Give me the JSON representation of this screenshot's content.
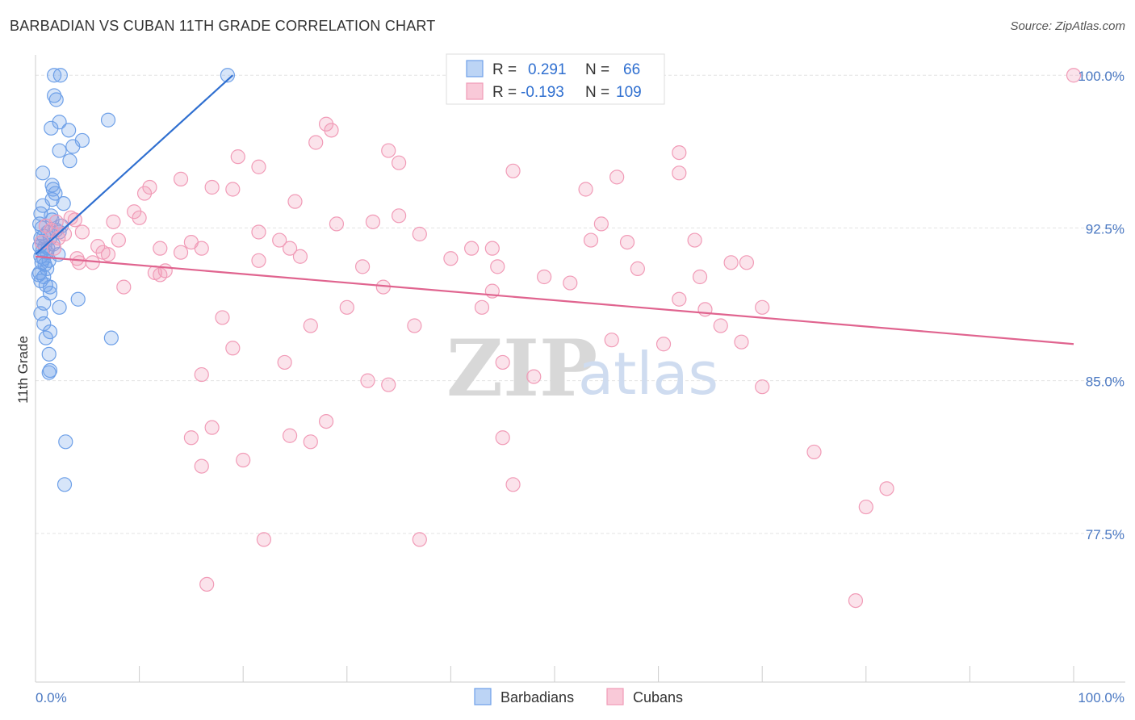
{
  "header": {
    "title": "BARBADIAN VS CUBAN 11TH GRADE CORRELATION CHART",
    "source": "Source: ZipAtlas.com"
  },
  "watermark": {
    "part1": "ZIP",
    "part2": "atlas"
  },
  "legend": {
    "rows": [
      {
        "r_label": "R =",
        "r_value": "0.291",
        "n_label": "N =",
        "n_value": "66",
        "color": "#6ea0e8"
      },
      {
        "r_label": "R =",
        "r_value": "-0.193",
        "n_label": "N =",
        "n_value": "109",
        "color": "#f19bb7"
      }
    ]
  },
  "bottom_legend": [
    {
      "label": "Barbadians",
      "color": "#6ea0e8"
    },
    {
      "label": "Cubans",
      "color": "#f19bb7"
    }
  ],
  "chart_data": {
    "type": "scatter",
    "title": "BARBADIAN VS CUBAN 11TH GRADE CORRELATION CHART",
    "xlabel": "",
    "ylabel": "11th Grade",
    "xlim": [
      0,
      100
    ],
    "ylim": [
      70.2,
      101.0
    ],
    "x_tick_labels": [
      "0.0%",
      "100.0%"
    ],
    "y_ticks": [
      77.5,
      85.0,
      92.5,
      100.0
    ],
    "y_tick_labels": [
      "77.5%",
      "85.0%",
      "92.5%",
      "100.0%"
    ],
    "grid": true,
    "series": [
      {
        "name": "Barbadians",
        "color": "#6ea0e8",
        "trend": {
          "x": [
            0.0,
            19.0
          ],
          "y": [
            91.2,
            100.0
          ]
        },
        "points": [
          [
            1.8,
            100.0
          ],
          [
            2.4,
            100.0
          ],
          [
            18.5,
            100.0
          ],
          [
            1.8,
            99.0
          ],
          [
            2.0,
            98.8
          ],
          [
            2.3,
            97.7
          ],
          [
            7.0,
            97.8
          ],
          [
            1.5,
            97.4
          ],
          [
            3.2,
            97.3
          ],
          [
            4.5,
            96.8
          ],
          [
            3.6,
            96.5
          ],
          [
            2.3,
            96.3
          ],
          [
            3.3,
            95.8
          ],
          [
            0.7,
            95.2
          ],
          [
            1.6,
            94.6
          ],
          [
            1.7,
            94.4
          ],
          [
            1.9,
            94.2
          ],
          [
            1.6,
            93.9
          ],
          [
            2.7,
            93.7
          ],
          [
            0.7,
            93.6
          ],
          [
            0.5,
            93.2
          ],
          [
            1.5,
            93.1
          ],
          [
            1.6,
            92.9
          ],
          [
            0.4,
            92.7
          ],
          [
            2.0,
            92.4
          ],
          [
            2.3,
            92.3
          ],
          [
            1.2,
            92.3
          ],
          [
            0.8,
            92.1
          ],
          [
            1.4,
            92.0
          ],
          [
            0.6,
            91.8
          ],
          [
            0.9,
            91.6
          ],
          [
            0.7,
            91.4
          ],
          [
            1.1,
            91.3
          ],
          [
            2.2,
            91.2
          ],
          [
            0.5,
            91.1
          ],
          [
            0.8,
            91.0
          ],
          [
            1.3,
            90.9
          ],
          [
            0.6,
            90.8
          ],
          [
            1.1,
            90.5
          ],
          [
            0.4,
            90.3
          ],
          [
            0.8,
            90.1
          ],
          [
            0.5,
            89.9
          ],
          [
            1.4,
            89.6
          ],
          [
            1.4,
            89.3
          ],
          [
            4.1,
            89.0
          ],
          [
            0.8,
            88.8
          ],
          [
            2.3,
            88.6
          ],
          [
            0.5,
            88.3
          ],
          [
            0.8,
            87.8
          ],
          [
            1.4,
            87.4
          ],
          [
            1.0,
            87.1
          ],
          [
            7.3,
            87.1
          ],
          [
            1.3,
            86.3
          ],
          [
            1.4,
            85.5
          ],
          [
            1.3,
            85.4
          ],
          [
            2.9,
            82.0
          ],
          [
            2.8,
            79.9
          ],
          [
            0.4,
            91.6
          ],
          [
            0.6,
            92.5
          ],
          [
            1.0,
            89.7
          ],
          [
            0.3,
            90.2
          ],
          [
            1.7,
            91.7
          ],
          [
            2.5,
            92.6
          ],
          [
            0.9,
            90.7
          ],
          [
            0.5,
            92.0
          ],
          [
            1.2,
            91.5
          ]
        ]
      },
      {
        "name": "Cubans",
        "color": "#f19bb7",
        "trend": {
          "x": [
            0.0,
            100.0
          ],
          "y": [
            91.1,
            86.8
          ]
        },
        "points": [
          [
            100.0,
            100.0
          ],
          [
            28.0,
            97.6
          ],
          [
            28.5,
            97.3
          ],
          [
            27.0,
            96.7
          ],
          [
            34.0,
            96.3
          ],
          [
            62.0,
            96.2
          ],
          [
            19.5,
            96.0
          ],
          [
            35.0,
            95.7
          ],
          [
            21.5,
            95.5
          ],
          [
            46.0,
            95.3
          ],
          [
            56.0,
            95.0
          ],
          [
            62.0,
            95.2
          ],
          [
            14.0,
            94.9
          ],
          [
            11.0,
            94.5
          ],
          [
            17.0,
            94.5
          ],
          [
            19.0,
            94.4
          ],
          [
            10.5,
            94.2
          ],
          [
            53.0,
            94.4
          ],
          [
            25.0,
            93.8
          ],
          [
            9.5,
            93.3
          ],
          [
            35.0,
            93.1
          ],
          [
            10.0,
            93.0
          ],
          [
            3.8,
            92.9
          ],
          [
            7.5,
            92.8
          ],
          [
            32.5,
            92.8
          ],
          [
            54.5,
            92.7
          ],
          [
            29.0,
            92.7
          ],
          [
            21.5,
            92.3
          ],
          [
            37.0,
            92.2
          ],
          [
            4.5,
            92.3
          ],
          [
            2.2,
            92.0
          ],
          [
            23.5,
            91.9
          ],
          [
            8.0,
            91.9
          ],
          [
            15.0,
            91.8
          ],
          [
            53.5,
            91.9
          ],
          [
            57.0,
            91.8
          ],
          [
            63.5,
            91.9
          ],
          [
            6.0,
            91.6
          ],
          [
            42.0,
            91.5
          ],
          [
            44.0,
            91.5
          ],
          [
            12.0,
            91.5
          ],
          [
            16.0,
            91.5
          ],
          [
            24.5,
            91.5
          ],
          [
            7.0,
            91.2
          ],
          [
            14.0,
            91.3
          ],
          [
            25.5,
            91.1
          ],
          [
            40.0,
            91.0
          ],
          [
            21.5,
            90.9
          ],
          [
            4.2,
            90.8
          ],
          [
            5.5,
            90.8
          ],
          [
            67.0,
            90.8
          ],
          [
            68.5,
            90.8
          ],
          [
            31.5,
            90.6
          ],
          [
            44.5,
            90.6
          ],
          [
            58.0,
            90.5
          ],
          [
            11.5,
            90.3
          ],
          [
            12.5,
            90.4
          ],
          [
            12.0,
            90.2
          ],
          [
            49.0,
            90.1
          ],
          [
            64.0,
            90.1
          ],
          [
            51.5,
            89.8
          ],
          [
            8.5,
            89.6
          ],
          [
            33.5,
            89.6
          ],
          [
            44.0,
            89.4
          ],
          [
            62.0,
            89.0
          ],
          [
            43.0,
            88.6
          ],
          [
            30.0,
            88.6
          ],
          [
            64.5,
            88.5
          ],
          [
            70.0,
            88.6
          ],
          [
            18.0,
            88.1
          ],
          [
            26.5,
            87.7
          ],
          [
            36.5,
            87.7
          ],
          [
            66.0,
            87.7
          ],
          [
            55.5,
            87.0
          ],
          [
            60.5,
            86.8
          ],
          [
            68.0,
            86.9
          ],
          [
            19.0,
            86.6
          ],
          [
            45.0,
            85.9
          ],
          [
            24.0,
            85.9
          ],
          [
            48.0,
            85.2
          ],
          [
            16.0,
            85.3
          ],
          [
            32.0,
            85.0
          ],
          [
            34.0,
            84.8
          ],
          [
            70.0,
            84.7
          ],
          [
            28.0,
            83.0
          ],
          [
            17.0,
            82.7
          ],
          [
            24.5,
            82.3
          ],
          [
            15.0,
            82.2
          ],
          [
            26.5,
            82.0
          ],
          [
            45.0,
            82.2
          ],
          [
            75.0,
            81.5
          ],
          [
            20.0,
            81.1
          ],
          [
            16.0,
            80.8
          ],
          [
            46.0,
            79.9
          ],
          [
            82.0,
            79.7
          ],
          [
            80.0,
            78.8
          ],
          [
            22.0,
            77.2
          ],
          [
            37.0,
            77.2
          ],
          [
            16.5,
            75.0
          ],
          [
            79.0,
            74.2
          ],
          [
            1.5,
            92.4
          ],
          [
            2.8,
            92.2
          ],
          [
            1.0,
            92.6
          ],
          [
            3.4,
            93.0
          ],
          [
            0.6,
            91.8
          ],
          [
            2.0,
            92.8
          ],
          [
            4.0,
            91.0
          ],
          [
            6.5,
            91.3
          ],
          [
            1.8,
            91.5
          ]
        ]
      }
    ]
  }
}
